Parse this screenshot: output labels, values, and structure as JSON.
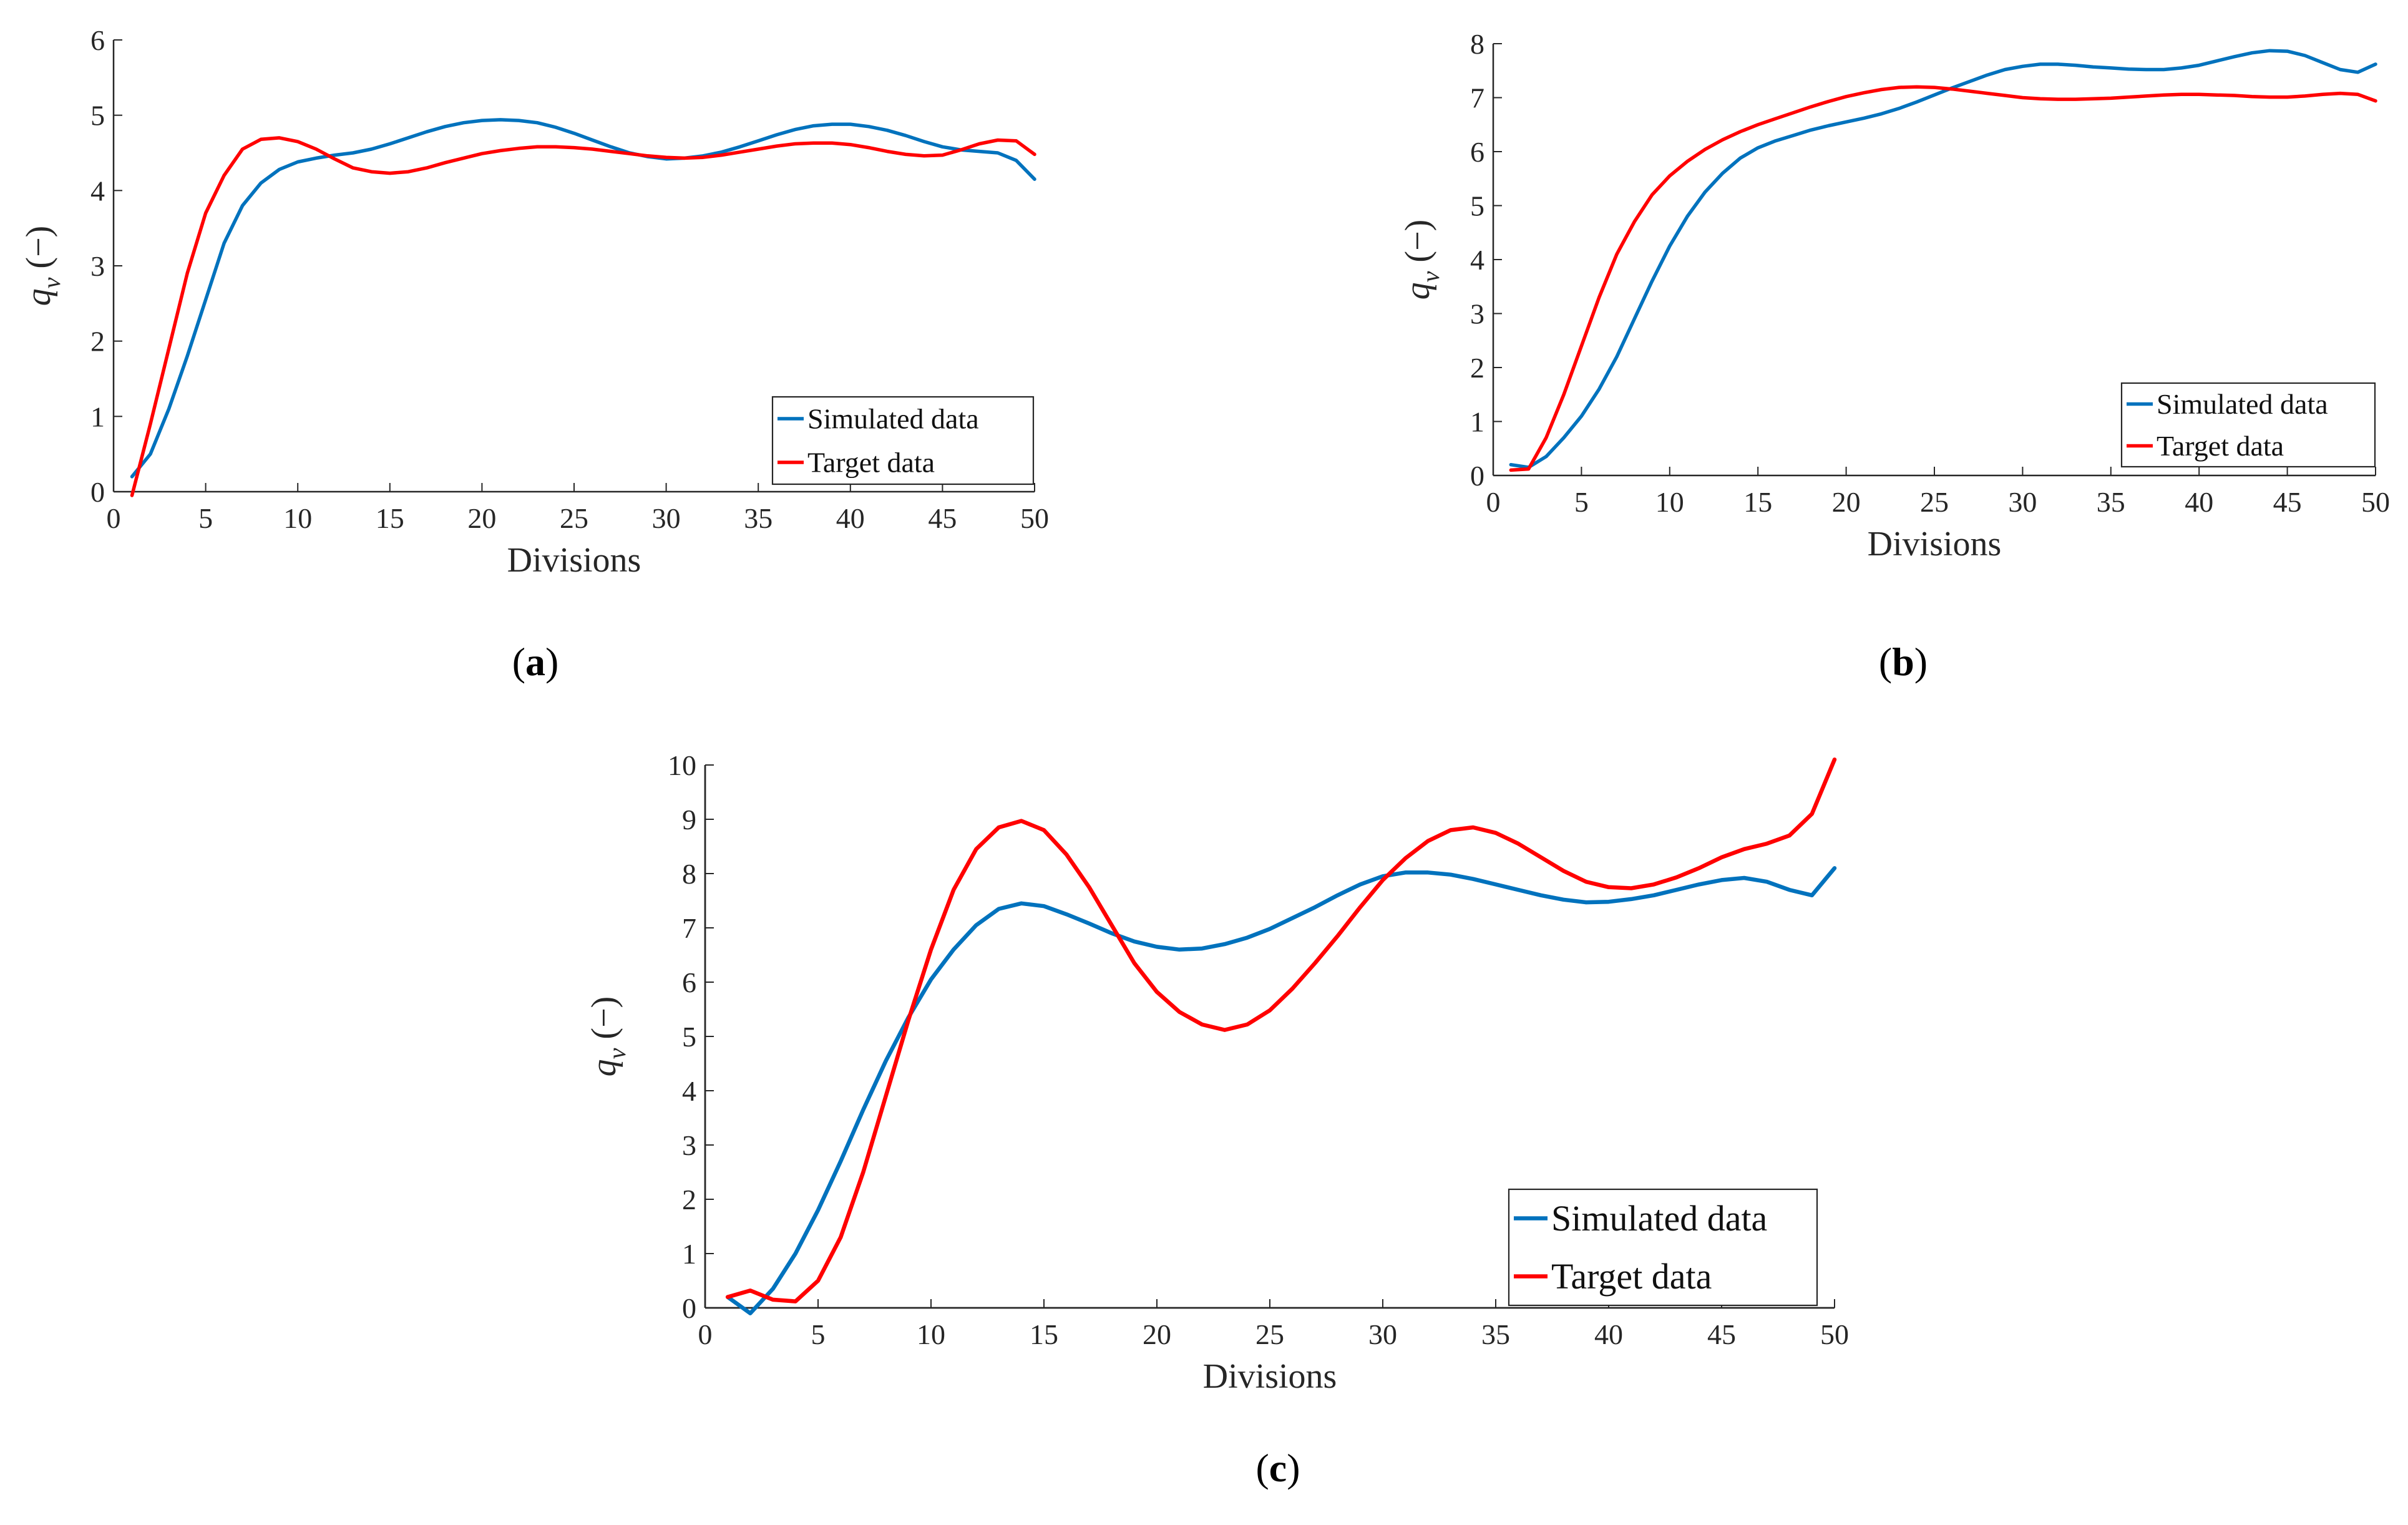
{
  "chart_data": [
    {
      "type": "line",
      "panel": "a",
      "caption_letter": "a",
      "title": "",
      "xlabel": "Divisions",
      "ylabel_symbol": "q",
      "ylabel_subscript": "v",
      "ylabel_unit": "(−)",
      "xlim": [
        0,
        50
      ],
      "ylim": [
        0,
        6
      ],
      "xticks": [
        0,
        5,
        10,
        15,
        20,
        25,
        30,
        35,
        40,
        45,
        50
      ],
      "yticks": [
        0,
        1,
        2,
        3,
        4,
        5,
        6
      ],
      "grid": false,
      "legend_position": "bottom-right",
      "series": [
        {
          "name": "Simulated data",
          "color": "#0072BD",
          "x": [
            1,
            2,
            3,
            4,
            5,
            6,
            7,
            8,
            9,
            10,
            11,
            12,
            13,
            14,
            15,
            16,
            17,
            18,
            19,
            20,
            21,
            22,
            23,
            24,
            25,
            26,
            27,
            28,
            29,
            30,
            31,
            32,
            33,
            34,
            35,
            36,
            37,
            38,
            39,
            40,
            41,
            42,
            43,
            44,
            45,
            46,
            47,
            48,
            49,
            50
          ],
          "values": [
            0.2,
            0.5,
            1.1,
            1.8,
            2.55,
            3.3,
            3.8,
            4.1,
            4.28,
            4.38,
            4.43,
            4.47,
            4.5,
            4.55,
            4.62,
            4.7,
            4.78,
            4.85,
            4.9,
            4.93,
            4.94,
            4.93,
            4.9,
            4.84,
            4.76,
            4.67,
            4.58,
            4.5,
            4.45,
            4.42,
            4.43,
            4.46,
            4.51,
            4.58,
            4.66,
            4.74,
            4.81,
            4.86,
            4.88,
            4.88,
            4.85,
            4.8,
            4.73,
            4.65,
            4.58,
            4.54,
            4.52,
            4.5,
            4.4,
            4.15
          ]
        },
        {
          "name": "Target data",
          "color": "#FF0000",
          "x": [
            1,
            2,
            3,
            4,
            5,
            6,
            7,
            8,
            9,
            10,
            11,
            12,
            13,
            14,
            15,
            16,
            17,
            18,
            19,
            20,
            21,
            22,
            23,
            24,
            25,
            26,
            27,
            28,
            29,
            30,
            31,
            32,
            33,
            34,
            35,
            36,
            37,
            38,
            39,
            40,
            41,
            42,
            43,
            44,
            45,
            46,
            47,
            48,
            49,
            50
          ],
          "values": [
            -0.05,
            0.9,
            1.9,
            2.9,
            3.7,
            4.2,
            4.55,
            4.68,
            4.7,
            4.65,
            4.55,
            4.42,
            4.3,
            4.25,
            4.23,
            4.25,
            4.3,
            4.37,
            4.43,
            4.49,
            4.53,
            4.56,
            4.58,
            4.58,
            4.57,
            4.55,
            4.52,
            4.49,
            4.46,
            4.44,
            4.43,
            4.44,
            4.47,
            4.51,
            4.55,
            4.59,
            4.62,
            4.63,
            4.63,
            4.61,
            4.57,
            4.52,
            4.48,
            4.46,
            4.47,
            4.54,
            4.62,
            4.67,
            4.66,
            4.48
          ]
        }
      ]
    },
    {
      "type": "line",
      "panel": "b",
      "caption_letter": "b",
      "title": "",
      "xlabel": "Divisions",
      "ylabel_symbol": "q",
      "ylabel_subscript": "v",
      "ylabel_unit": "(−)",
      "xlim": [
        0,
        50
      ],
      "ylim": [
        0,
        8
      ],
      "xticks": [
        0,
        5,
        10,
        15,
        20,
        25,
        30,
        35,
        40,
        45,
        50
      ],
      "yticks": [
        0,
        1,
        2,
        3,
        4,
        5,
        6,
        7,
        8
      ],
      "grid": false,
      "legend_position": "bottom-right",
      "series": [
        {
          "name": "Simulated data",
          "color": "#0072BD",
          "x": [
            1,
            2,
            3,
            4,
            5,
            6,
            7,
            8,
            9,
            10,
            11,
            12,
            13,
            14,
            15,
            16,
            17,
            18,
            19,
            20,
            21,
            22,
            23,
            24,
            25,
            26,
            27,
            28,
            29,
            30,
            31,
            32,
            33,
            34,
            35,
            36,
            37,
            38,
            39,
            40,
            41,
            42,
            43,
            44,
            45,
            46,
            47,
            48,
            49,
            50
          ],
          "values": [
            0.2,
            0.15,
            0.35,
            0.7,
            1.1,
            1.6,
            2.2,
            2.9,
            3.6,
            4.25,
            4.8,
            5.25,
            5.6,
            5.88,
            6.07,
            6.2,
            6.3,
            6.4,
            6.48,
            6.55,
            6.62,
            6.7,
            6.8,
            6.92,
            7.05,
            7.18,
            7.3,
            7.42,
            7.52,
            7.58,
            7.62,
            7.62,
            7.6,
            7.57,
            7.55,
            7.53,
            7.52,
            7.52,
            7.55,
            7.6,
            7.68,
            7.76,
            7.83,
            7.87,
            7.86,
            7.78,
            7.65,
            7.52,
            7.47,
            7.62
          ]
        },
        {
          "name": "Target data",
          "color": "#FF0000",
          "x": [
            1,
            2,
            3,
            4,
            5,
            6,
            7,
            8,
            9,
            10,
            11,
            12,
            13,
            14,
            15,
            16,
            17,
            18,
            19,
            20,
            21,
            22,
            23,
            24,
            25,
            26,
            27,
            28,
            29,
            30,
            31,
            32,
            33,
            34,
            35,
            36,
            37,
            38,
            39,
            40,
            41,
            42,
            43,
            44,
            45,
            46,
            47,
            48,
            49,
            50
          ],
          "values": [
            0.1,
            0.12,
            0.7,
            1.5,
            2.4,
            3.3,
            4.1,
            4.7,
            5.2,
            5.55,
            5.82,
            6.04,
            6.22,
            6.37,
            6.5,
            6.61,
            6.72,
            6.83,
            6.93,
            7.02,
            7.09,
            7.15,
            7.19,
            7.2,
            7.19,
            7.16,
            7.12,
            7.08,
            7.04,
            7.0,
            6.98,
            6.97,
            6.97,
            6.98,
            6.99,
            7.01,
            7.03,
            7.05,
            7.06,
            7.06,
            7.05,
            7.04,
            7.02,
            7.01,
            7.01,
            7.03,
            7.06,
            7.08,
            7.06,
            6.94
          ]
        }
      ]
    },
    {
      "type": "line",
      "panel": "c",
      "caption_letter": "c",
      "title": "",
      "xlabel": "Divisions",
      "ylabel_symbol": "q",
      "ylabel_subscript": "v",
      "ylabel_unit": "(−)",
      "xlim": [
        0,
        50
      ],
      "ylim": [
        0,
        10
      ],
      "xticks": [
        0,
        5,
        10,
        15,
        20,
        25,
        30,
        35,
        40,
        45,
        50
      ],
      "yticks": [
        0,
        1,
        2,
        3,
        4,
        5,
        6,
        7,
        8,
        9,
        10
      ],
      "grid": false,
      "legend_position": "bottom-right",
      "series": [
        {
          "name": "Simulated data",
          "color": "#0072BD",
          "x": [
            1,
            2,
            3,
            4,
            5,
            6,
            7,
            8,
            9,
            10,
            11,
            12,
            13,
            14,
            15,
            16,
            17,
            18,
            19,
            20,
            21,
            22,
            23,
            24,
            25,
            26,
            27,
            28,
            29,
            30,
            31,
            32,
            33,
            34,
            35,
            36,
            37,
            38,
            39,
            40,
            41,
            42,
            43,
            44,
            45,
            46,
            47,
            48,
            49,
            50
          ],
          "values": [
            0.2,
            -0.1,
            0.35,
            1.0,
            1.8,
            2.7,
            3.65,
            4.55,
            5.35,
            6.05,
            6.6,
            7.05,
            7.35,
            7.45,
            7.4,
            7.25,
            7.08,
            6.9,
            6.75,
            6.65,
            6.6,
            6.62,
            6.7,
            6.82,
            6.98,
            7.18,
            7.38,
            7.6,
            7.8,
            7.95,
            8.02,
            8.02,
            7.98,
            7.9,
            7.8,
            7.7,
            7.6,
            7.52,
            7.47,
            7.48,
            7.53,
            7.6,
            7.7,
            7.8,
            7.88,
            7.92,
            7.85,
            7.7,
            7.6,
            8.1
          ]
        },
        {
          "name": "Target data",
          "color": "#FF0000",
          "x": [
            1,
            2,
            3,
            4,
            5,
            6,
            7,
            8,
            9,
            10,
            11,
            12,
            13,
            14,
            15,
            16,
            17,
            18,
            19,
            20,
            21,
            22,
            23,
            24,
            25,
            26,
            27,
            28,
            29,
            30,
            31,
            32,
            33,
            34,
            35,
            36,
            37,
            38,
            39,
            40,
            41,
            42,
            43,
            44,
            45,
            46,
            47,
            48,
            49,
            50
          ],
          "values": [
            0.2,
            0.32,
            0.15,
            0.12,
            0.5,
            1.3,
            2.5,
            3.9,
            5.3,
            6.6,
            7.7,
            8.45,
            8.85,
            8.97,
            8.8,
            8.35,
            7.75,
            7.05,
            6.35,
            5.82,
            5.45,
            5.22,
            5.12,
            5.22,
            5.48,
            5.88,
            6.35,
            6.85,
            7.38,
            7.88,
            8.28,
            8.6,
            8.8,
            8.85,
            8.75,
            8.55,
            8.3,
            8.05,
            7.85,
            7.75,
            7.73,
            7.8,
            7.93,
            8.1,
            8.3,
            8.45,
            8.55,
            8.7,
            9.1,
            10.1
          ]
        }
      ]
    }
  ]
}
